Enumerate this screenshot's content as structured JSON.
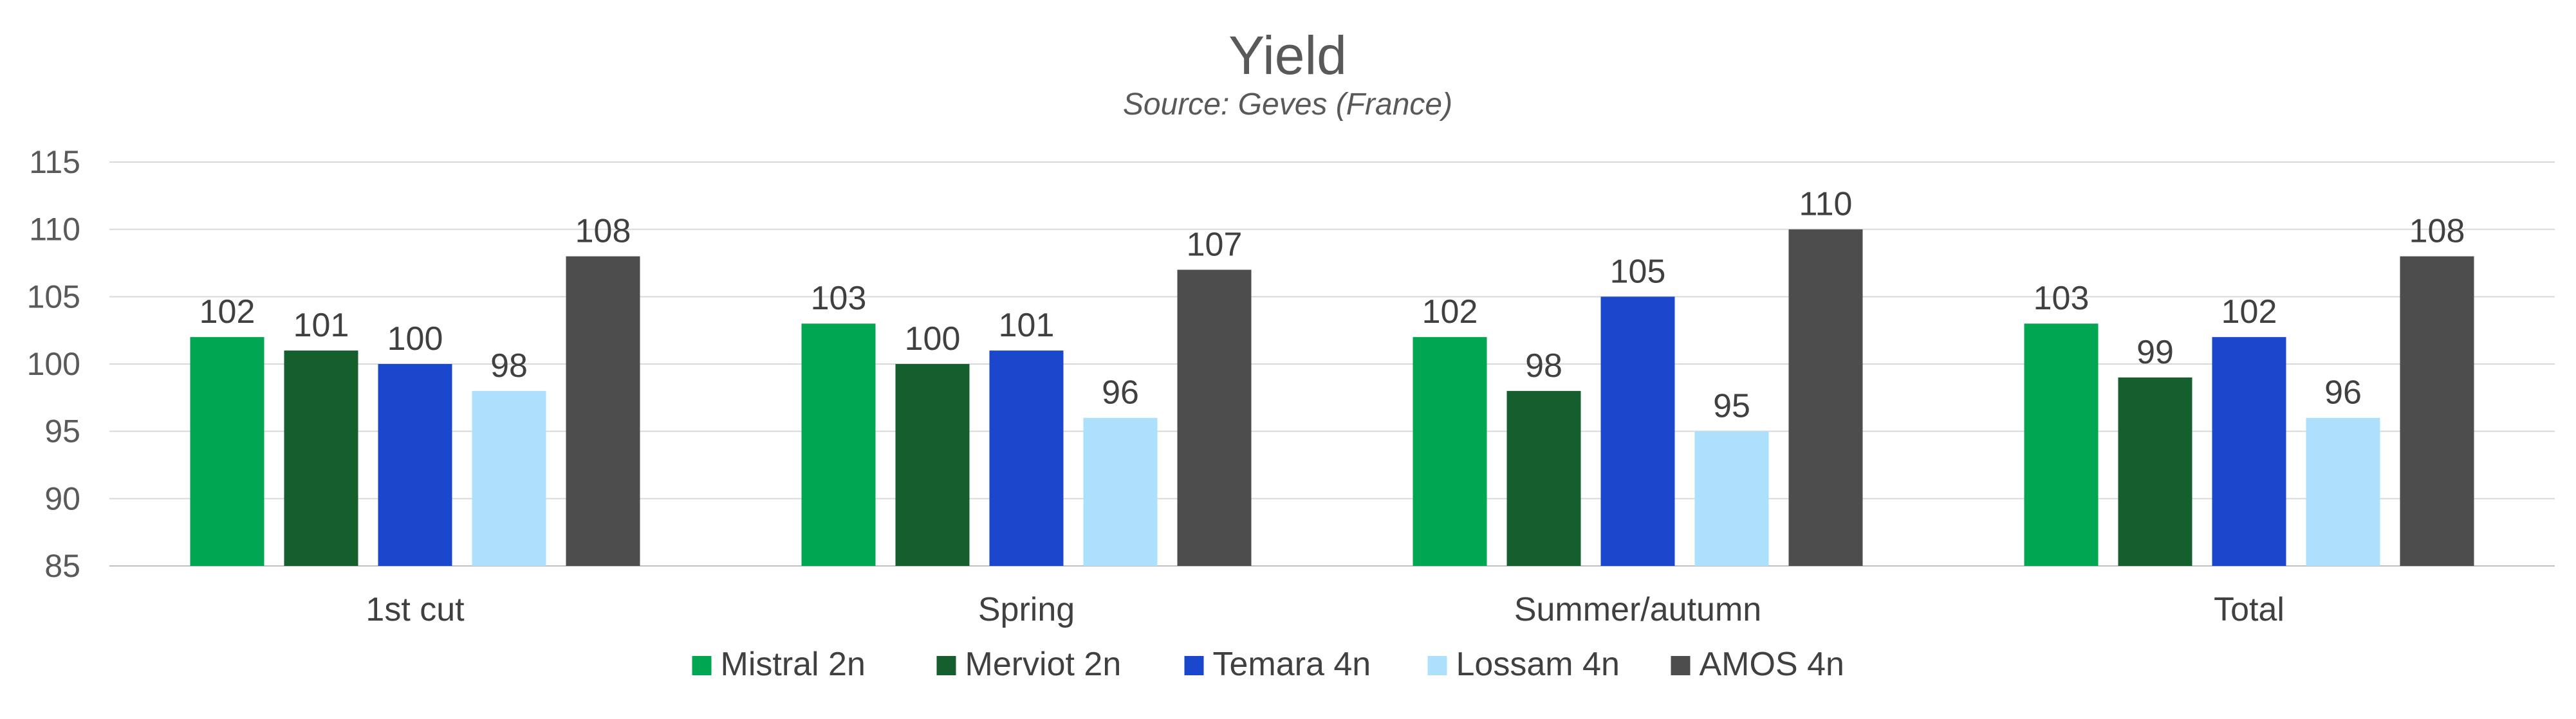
{
  "chart_data": {
    "type": "bar",
    "title": "Yield",
    "subtitle": "Source: Geves (France)",
    "xlabel": "",
    "ylabel": "",
    "categories": [
      "1st cut",
      "Spring",
      "Summer/autumn",
      "Total"
    ],
    "ylim": [
      85,
      115
    ],
    "yticks": [
      85,
      90,
      95,
      100,
      105,
      110,
      115
    ],
    "grid": true,
    "legend_position": "bottom",
    "series": [
      {
        "name": "Mistral 2n",
        "color": "#00a651",
        "values": [
          102,
          103,
          102,
          103
        ]
      },
      {
        "name": "Merviot 2n",
        "color": "#145f2d",
        "values": [
          101,
          100,
          98,
          99
        ]
      },
      {
        "name": "Temara 4n",
        "color": "#1a47cc",
        "values": [
          100,
          101,
          105,
          102
        ]
      },
      {
        "name": "Lossam 4n",
        "color": "#ade1fb",
        "values": [
          98,
          96,
          95,
          96
        ]
      },
      {
        "name": "AMOS 4n",
        "color": "#4d4d4d",
        "values": [
          108,
          107,
          110,
          108
        ]
      }
    ]
  }
}
